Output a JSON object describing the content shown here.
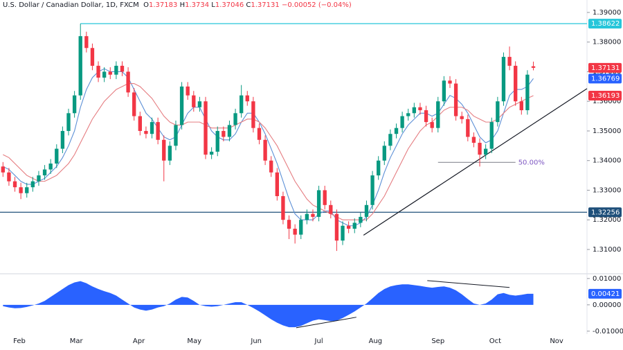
{
  "chart_data": {
    "type": "candlestick",
    "title": "U.S. Dollar / Canadian Dollar, 1D, FXCM",
    "ohlc_letters": [
      "O",
      "H",
      "L",
      "C"
    ],
    "change": "−0.00052 (−0.04%)",
    "up_color": "#089981",
    "down_color": "#f23645",
    "xlim": [
      -0.5,
      98
    ],
    "xticks": [
      {
        "value": 2.75,
        "label": "Feb"
      },
      {
        "value": 12.3,
        "label": "Mar"
      },
      {
        "value": 22.8,
        "label": "Apr"
      },
      {
        "value": 32.1,
        "label": "May"
      },
      {
        "value": 42.5,
        "label": "Jun"
      },
      {
        "value": 53,
        "label": "Jul"
      },
      {
        "value": 62.5,
        "label": "Aug"
      },
      {
        "value": 73,
        "label": "Sep"
      },
      {
        "value": 82.6,
        "label": "Oct"
      },
      {
        "value": 92.9,
        "label": "Nov"
      }
    ],
    "ylim": [
      1.3018,
      1.3942
    ],
    "yticks": [
      {
        "value": 1.39,
        "label": "1.39000"
      },
      {
        "value": 1.38,
        "label": "1.38000"
      },
      {
        "value": 1.37,
        "label": "1.37000"
      },
      {
        "value": 1.36,
        "label": "1.36000"
      },
      {
        "value": 1.35,
        "label": "1.35000"
      },
      {
        "value": 1.34,
        "label": "1.34000"
      },
      {
        "value": 1.33,
        "label": "1.33000"
      },
      {
        "value": 1.32,
        "label": "1.32000"
      },
      {
        "value": 1.31,
        "label": "1.31000"
      }
    ],
    "open": [
      1.338,
      1.336,
      1.333,
      1.331,
      1.329,
      1.331,
      1.333,
      1.335,
      1.337,
      1.339,
      1.344,
      1.35,
      1.356,
      1.362,
      1.382,
      1.378,
      1.372,
      1.368,
      1.37,
      1.369,
      1.372,
      1.37,
      1.363,
      1.355,
      1.35,
      1.349,
      1.353,
      1.347,
      1.34,
      1.345,
      1.352,
      1.365,
      1.362,
      1.358,
      1.36,
      1.342,
      1.343,
      1.35,
      1.348,
      1.352,
      1.356,
      1.362,
      1.36,
      1.351,
      1.347,
      1.34,
      1.336,
      1.328,
      1.32,
      1.317,
      1.315,
      1.32,
      1.322,
      1.321,
      1.33,
      1.325,
      1.322,
      1.313,
      1.318,
      1.317,
      1.319,
      1.321,
      1.325,
      1.335,
      1.34,
      1.345,
      1.349,
      1.351,
      1.355,
      1.356,
      1.358,
      1.357,
      1.353,
      1.351,
      1.36,
      1.367,
      1.366,
      1.355,
      1.354,
      1.348,
      1.346,
      1.342,
      1.344,
      1.353,
      1.36,
      1.375,
      1.372,
      1.36,
      1.357,
      1.37183
    ],
    "high": [
      1.3395,
      1.3375,
      1.3345,
      1.3325,
      1.3325,
      1.3345,
      1.3365,
      1.3385,
      1.3405,
      1.3455,
      1.3515,
      1.3575,
      1.3635,
      1.3862,
      1.3835,
      1.3795,
      1.3735,
      1.3715,
      1.3715,
      1.3735,
      1.3735,
      1.3715,
      1.3645,
      1.3565,
      1.3515,
      1.3545,
      1.3545,
      1.3485,
      1.3465,
      1.3535,
      1.3665,
      1.3665,
      1.3635,
      1.3615,
      1.3615,
      1.3445,
      1.3515,
      1.3515,
      1.3535,
      1.3575,
      1.3655,
      1.3635,
      1.3615,
      1.3525,
      1.3485,
      1.3415,
      1.3375,
      1.3295,
      1.3215,
      1.3185,
      1.3215,
      1.3235,
      1.3235,
      1.3315,
      1.3315,
      1.3265,
      1.3235,
      1.3195,
      1.3195,
      1.3205,
      1.3225,
      1.3265,
      1.3365,
      1.3415,
      1.3465,
      1.3505,
      1.3525,
      1.3565,
      1.3575,
      1.3595,
      1.3595,
      1.3585,
      1.3545,
      1.3615,
      1.3685,
      1.3685,
      1.3675,
      1.3565,
      1.3555,
      1.3495,
      1.3475,
      1.3455,
      1.3545,
      1.3615,
      1.3765,
      1.3785,
      1.3735,
      1.3615,
      1.3705,
      1.3734
    ],
    "low": [
      1.3345,
      1.3315,
      1.3295,
      1.327,
      1.3275,
      1.3295,
      1.3315,
      1.3335,
      1.3355,
      1.3375,
      1.3425,
      1.3485,
      1.3545,
      1.3605,
      1.3765,
      1.3705,
      1.3665,
      1.3665,
      1.3675,
      1.3675,
      1.3685,
      1.3615,
      1.3535,
      1.3485,
      1.3475,
      1.3475,
      1.3455,
      1.333,
      1.3385,
      1.3435,
      1.3505,
      1.3605,
      1.3565,
      1.3565,
      1.3405,
      1.3405,
      1.3415,
      1.3465,
      1.3465,
      1.3505,
      1.3545,
      1.3585,
      1.3495,
      1.3455,
      1.3385,
      1.3345,
      1.3265,
      1.3185,
      1.3135,
      1.312,
      1.3135,
      1.3185,
      1.3195,
      1.3195,
      1.3235,
      1.3205,
      1.3095,
      1.3115,
      1.3155,
      1.3155,
      1.3175,
      1.3195,
      1.3235,
      1.3335,
      1.3385,
      1.3435,
      1.3475,
      1.3495,
      1.3535,
      1.3545,
      1.3555,
      1.3515,
      1.3495,
      1.3495,
      1.3585,
      1.3645,
      1.3535,
      1.3525,
      1.3465,
      1.3445,
      1.338,
      1.3405,
      1.3425,
      1.3515,
      1.3585,
      1.3705,
      1.3585,
      1.3555,
      1.3555,
      1.37046
    ],
    "close": [
      1.336,
      1.333,
      1.331,
      1.329,
      1.331,
      1.333,
      1.335,
      1.337,
      1.339,
      1.344,
      1.35,
      1.356,
      1.362,
      1.382,
      1.378,
      1.372,
      1.368,
      1.37,
      1.369,
      1.372,
      1.37,
      1.363,
      1.355,
      1.35,
      1.349,
      1.353,
      1.347,
      1.34,
      1.345,
      1.352,
      1.365,
      1.362,
      1.358,
      1.36,
      1.342,
      1.343,
      1.35,
      1.348,
      1.352,
      1.356,
      1.362,
      1.36,
      1.351,
      1.347,
      1.34,
      1.336,
      1.328,
      1.32,
      1.317,
      1.315,
      1.32,
      1.322,
      1.321,
      1.33,
      1.325,
      1.322,
      1.313,
      1.318,
      1.317,
      1.319,
      1.321,
      1.325,
      1.335,
      1.34,
      1.345,
      1.349,
      1.351,
      1.355,
      1.356,
      1.358,
      1.357,
      1.353,
      1.351,
      1.36,
      1.367,
      1.366,
      1.355,
      1.354,
      1.348,
      1.346,
      1.342,
      1.344,
      1.353,
      1.36,
      1.375,
      1.372,
      1.36,
      1.357,
      1.369,
      1.37131
    ],
    "overlays": [
      {
        "color": "#5b8fd6",
        "values": [
          1.338,
          1.337,
          1.335,
          1.333,
          1.332,
          1.332,
          1.333,
          1.334,
          1.336,
          1.338,
          1.341,
          1.345,
          1.35,
          1.358,
          1.364,
          1.368,
          1.37,
          1.371,
          1.37,
          1.37,
          1.37,
          1.368,
          1.364,
          1.36,
          1.356,
          1.354,
          1.351,
          1.348,
          1.347,
          1.348,
          1.352,
          1.356,
          1.358,
          1.358,
          1.354,
          1.35,
          1.348,
          1.347,
          1.347,
          1.349,
          1.353,
          1.356,
          1.356,
          1.353,
          1.349,
          1.344,
          1.339,
          1.333,
          1.327,
          1.322,
          1.32,
          1.32,
          1.32,
          1.322,
          1.323,
          1.323,
          1.32,
          1.319,
          1.318,
          1.318,
          1.319,
          1.321,
          1.325,
          1.33,
          1.336,
          1.341,
          1.345,
          1.349,
          1.352,
          1.354,
          1.356,
          1.356,
          1.355,
          1.356,
          1.359,
          1.362,
          1.361,
          1.359,
          1.356,
          1.352,
          1.348,
          1.346,
          1.347,
          1.35,
          1.356,
          1.362,
          1.364,
          1.364,
          1.365,
          1.36769
        ]
      },
      {
        "color": "#e57c80",
        "values": [
          1.342,
          1.341,
          1.339,
          1.337,
          1.335,
          1.334,
          1.333,
          1.333,
          1.334,
          1.335,
          1.337,
          1.339,
          1.342,
          1.346,
          1.35,
          1.354,
          1.357,
          1.36,
          1.362,
          1.364,
          1.365,
          1.366,
          1.366,
          1.365,
          1.363,
          1.361,
          1.358,
          1.355,
          1.353,
          1.352,
          1.352,
          1.353,
          1.353,
          1.353,
          1.352,
          1.351,
          1.351,
          1.351,
          1.351,
          1.352,
          1.353,
          1.354,
          1.354,
          1.353,
          1.351,
          1.348,
          1.345,
          1.341,
          1.337,
          1.333,
          1.33,
          1.327,
          1.325,
          1.324,
          1.323,
          1.322,
          1.321,
          1.32,
          1.32,
          1.32,
          1.32,
          1.32,
          1.322,
          1.325,
          1.328,
          1.332,
          1.336,
          1.34,
          1.344,
          1.347,
          1.35,
          1.352,
          1.353,
          1.355,
          1.357,
          1.358,
          1.358,
          1.358,
          1.357,
          1.355,
          1.354,
          1.353,
          1.353,
          1.354,
          1.356,
          1.358,
          1.359,
          1.36,
          1.361,
          1.36193
        ]
      }
    ],
    "levels": [
      {
        "value": 1.38622,
        "color": "#26c6da",
        "from": 13
      },
      {
        "value": 1.32256,
        "color": "#1e4f7a",
        "from": -0.5
      }
    ],
    "trendline": {
      "x": [
        60.5,
        98
      ],
      "y": [
        1.3148,
        1.3643
      ]
    },
    "fib": {
      "x": [
        73,
        86
      ],
      "value": 1.3394,
      "label": "50.00%"
    },
    "oscillator": {
      "color": "#2962ff",
      "ylim": [
        -0.0111,
        0.0118
      ],
      "yticks": [
        {
          "value": 0.01,
          "label": "0.01000"
        },
        {
          "value": 0,
          "label": "0.00000"
        },
        {
          "value": -0.01,
          "label": "-0.01000"
        }
      ],
      "values": [
        -0.0005,
        -0.001,
        -0.0013,
        -0.0012,
        -0.0008,
        -0.0002,
        0.0005,
        0.0015,
        0.003,
        0.0045,
        0.006,
        0.0075,
        0.0085,
        0.009,
        0.0082,
        0.007,
        0.006,
        0.0052,
        0.0045,
        0.0035,
        0.002,
        0.0005,
        -0.001,
        -0.0018,
        -0.0022,
        -0.0018,
        -0.001,
        -0.0005,
        0.0005,
        0.002,
        0.003,
        0.0028,
        0.0015,
        0.0,
        -0.0005,
        -0.0007,
        -0.0005,
        0.0,
        0.0005,
        0.001,
        0.001,
        0.0,
        -0.0012,
        -0.0025,
        -0.004,
        -0.0055,
        -0.0068,
        -0.0078,
        -0.0085,
        -0.0085,
        -0.008,
        -0.007,
        -0.006,
        -0.0055,
        -0.0058,
        -0.0062,
        -0.006,
        -0.005,
        -0.0038,
        -0.0025,
        -0.001,
        0.0005,
        0.0025,
        0.0045,
        0.006,
        0.007,
        0.0075,
        0.0078,
        0.0078,
        0.0075,
        0.0072,
        0.0068,
        0.0065,
        0.0068,
        0.007,
        0.0065,
        0.0055,
        0.004,
        0.0022,
        0.0005,
        0.0,
        0.0005,
        0.002,
        0.004,
        0.0045,
        0.0038,
        0.0035,
        0.0038,
        0.0042,
        0.00421
      ],
      "lines": [
        {
          "x": [
            71.2,
            85
          ],
          "y": [
            0.0092,
            0.0066
          ]
        },
        {
          "x": [
            49.2,
            59.3
          ],
          "y": [
            -0.0087,
            -0.0047
          ]
        }
      ]
    }
  }
}
